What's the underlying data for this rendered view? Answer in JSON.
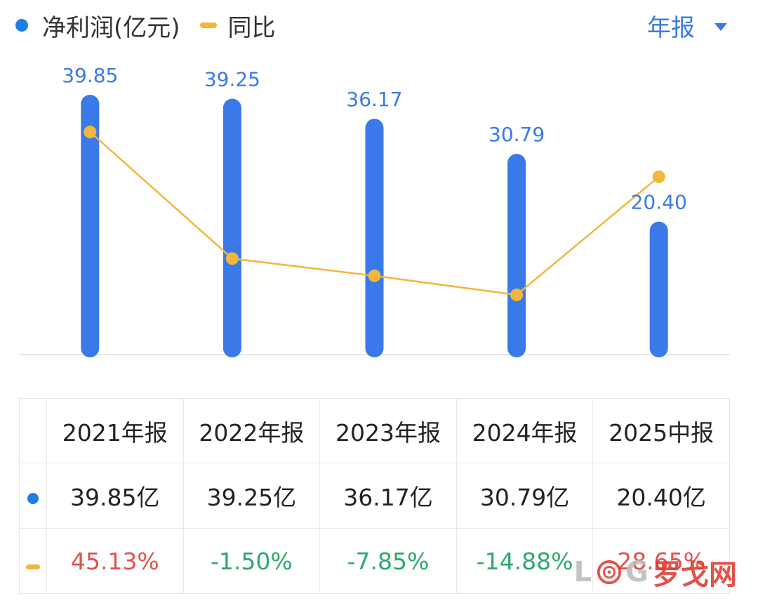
{
  "legend": {
    "series1_label": "净利润(亿元)",
    "series2_label": "同比"
  },
  "period_selector": {
    "label": "年报"
  },
  "colors": {
    "bar": "#3a7ae8",
    "line": "#f2b63c",
    "label_blue": "#3a7ae8",
    "positive": "#e0534a",
    "negative": "#2fa870",
    "dot_legend": "#1f7fe6"
  },
  "chart_data": {
    "type": "bar",
    "categories": [
      "2021年报",
      "2022年报",
      "2023年报",
      "2024年报",
      "2025中报"
    ],
    "series": [
      {
        "name": "净利润(亿元)",
        "type": "bar",
        "values": [
          39.85,
          39.25,
          36.17,
          30.79,
          20.4
        ]
      },
      {
        "name": "同比",
        "type": "line",
        "values": [
          45.13,
          -1.5,
          -7.85,
          -14.88,
          28.65
        ]
      }
    ],
    "data_labels": [
      "39.85",
      "39.25",
      "36.17",
      "30.79",
      "20.40"
    ],
    "ylim_bar": [
      0,
      39.85
    ],
    "ylim_line": [
      -14.88,
      45.13
    ],
    "grid": false,
    "legend_position": "top-left"
  },
  "table": {
    "headers": [
      "2021年报",
      "2022年报",
      "2023年报",
      "2024年报",
      "2025中报"
    ],
    "values": [
      "39.85亿",
      "39.25亿",
      "36.17亿",
      "30.79亿",
      "20.40亿"
    ],
    "yoy": [
      "45.13%",
      "-1.50%",
      "-7.85%",
      "-14.88%",
      "28.65%"
    ]
  },
  "watermark": {
    "latin_1": "L",
    "latin_2": "G",
    "cn": "罗戈网"
  }
}
